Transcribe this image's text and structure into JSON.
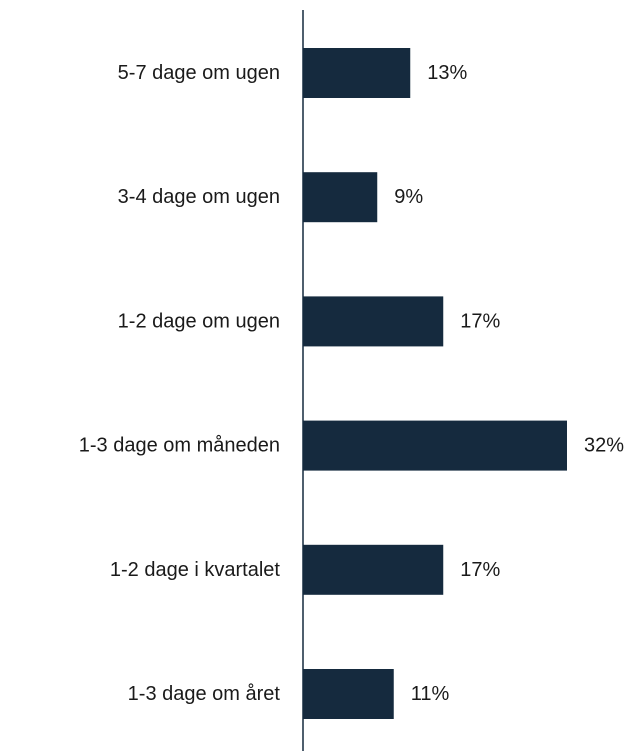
{
  "chart_data": {
    "type": "bar",
    "orientation": "horizontal",
    "categories": [
      "5-7 dage om ugen",
      "3-4 dage om ugen",
      "1-2 dage om ugen",
      "1-3 dage om måneden",
      "1-2 dage i kvartalet",
      "1-3 dage om året"
    ],
    "values": [
      13,
      9,
      17,
      32,
      17,
      11
    ],
    "value_labels": [
      "13%",
      "9%",
      "17%",
      "32%",
      "17%",
      "11%"
    ],
    "unit": "%",
    "xlim": [
      0,
      32
    ],
    "grid": false,
    "legend": "none",
    "colors": {
      "bar": "#152a3e",
      "axis": "#152a3e",
      "text": "#1a1a1a"
    }
  }
}
